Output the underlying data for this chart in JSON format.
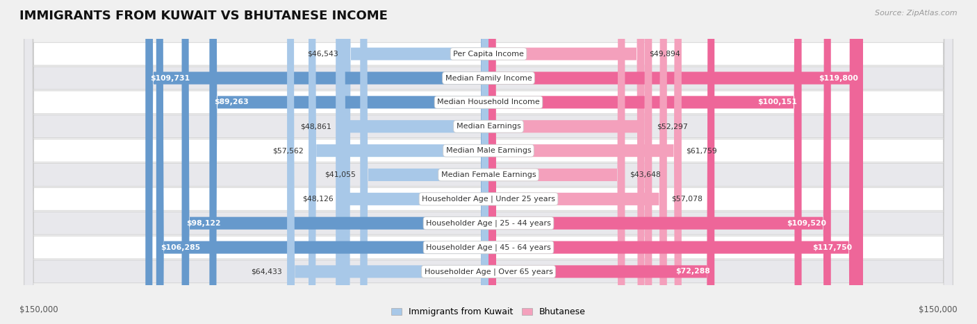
{
  "title": "IMMIGRANTS FROM KUWAIT VS BHUTANESE INCOME",
  "source": "Source: ZipAtlas.com",
  "categories": [
    "Per Capita Income",
    "Median Family Income",
    "Median Household Income",
    "Median Earnings",
    "Median Male Earnings",
    "Median Female Earnings",
    "Householder Age | Under 25 years",
    "Householder Age | 25 - 44 years",
    "Householder Age | 45 - 64 years",
    "Householder Age | Over 65 years"
  ],
  "kuwait_values": [
    46543,
    109731,
    89263,
    48861,
    57562,
    41055,
    48126,
    98122,
    106285,
    64433
  ],
  "bhutanese_values": [
    49894,
    119800,
    100151,
    52297,
    61759,
    43648,
    57078,
    109520,
    117750,
    72288
  ],
  "kuwait_color_light": "#a8c8e8",
  "kuwait_color_dark": "#6699cc",
  "bhutanese_color_light": "#f4a0bc",
  "bhutanese_color_dark": "#ee6699",
  "kuwait_inside_threshold": 70000,
  "bhutanese_inside_threshold": 70000,
  "max_value": 150000,
  "bg_color": "#f0f0f0",
  "row_colors": [
    "#ffffff",
    "#e8e8ec",
    "#ffffff",
    "#e8e8ec",
    "#ffffff",
    "#e8e8ec",
    "#ffffff",
    "#e8e8ec",
    "#ffffff",
    "#e8e8ec"
  ],
  "axis_label": "$150,000",
  "legend_kuwait": "Immigrants from Kuwait",
  "legend_bhutanese": "Bhutanese",
  "title_fontsize": 13,
  "label_fontsize": 8,
  "value_fontsize": 7.8
}
